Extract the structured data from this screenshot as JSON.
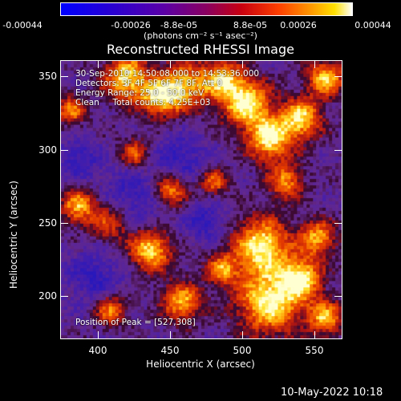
{
  "colorbar": {
    "tick_labels": [
      "-0.00044",
      "-0.00026",
      "-8.8e-05",
      "8.8e-05",
      "0.00026",
      "0.00044"
    ],
    "units": "(photons cm⁻² s⁻¹ asec⁻²)"
  },
  "title": "Reconstructed RHESSI Image",
  "info_lines": [
    "30-Sep-2010 14:50:08.000 to 14:53:36.000",
    "Detectors: 3F 4F 5F 6F 7F 8F, Att 0",
    "Energy Range: 25.0 - 50.0 keV",
    "Clean     Total counts: 4.25E+03"
  ],
  "peak_label": "Position of Peak = [527,308]",
  "axes": {
    "xlabel": "Heliocentric X (arcsec)",
    "ylabel": "Heliocentric Y (arcsec)",
    "xlim": [
      374,
      570
    ],
    "ylim": [
      170,
      364
    ],
    "x_ticks": [
      "400",
      "450",
      "500",
      "550"
    ],
    "y_ticks": [
      "350",
      "300",
      "250",
      "200"
    ]
  },
  "timestamp": "10-May-2022 10:18"
}
